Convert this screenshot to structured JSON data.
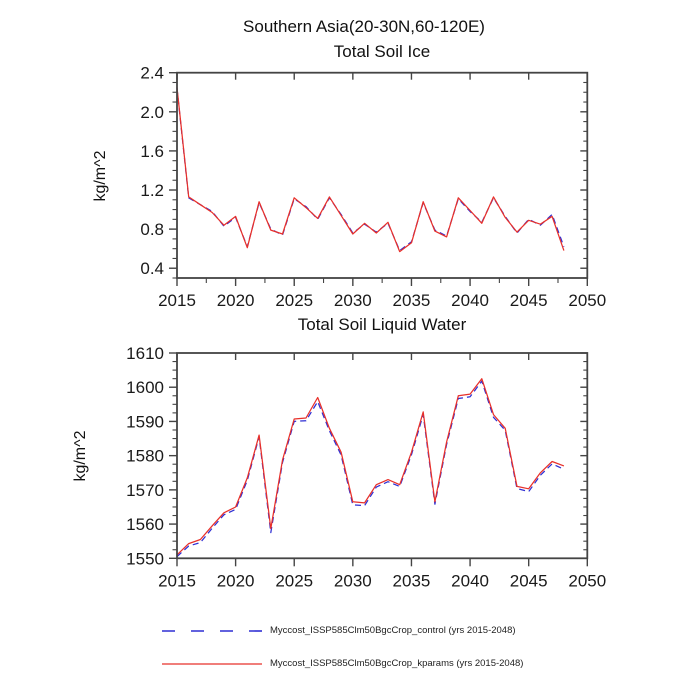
{
  "header": {
    "main_title": "Southern Asia(20-30N,60-120E)"
  },
  "colors": {
    "control": "#2f2fd3",
    "kparams": "#e8302a",
    "frame": "#444444",
    "text": "#1a1a1a"
  },
  "legend": {
    "items": [
      {
        "label": "Myccost_ISSP585Clm50BgcCrop_control (yrs 2015-2048)",
        "color": "#2f2fd3",
        "style": "dashed"
      },
      {
        "label": "Myccost_ISSP585Clm50BgcCrop_kparams (yrs 2015-2048)",
        "color": "#e8302a",
        "style": "solid"
      }
    ]
  },
  "chart_data": [
    {
      "type": "line",
      "title": "Total Soil Ice",
      "xlabel": "",
      "ylabel": "kg/m^2",
      "xlim": [
        2015,
        2050
      ],
      "ylim": [
        0.3,
        2.4
      ],
      "xticks": [
        2015,
        2020,
        2025,
        2030,
        2035,
        2040,
        2045,
        2050
      ],
      "xtick_labels": [
        "2015",
        "2020",
        "2025",
        "2030",
        "2035",
        "2040",
        "2045",
        "2050"
      ],
      "yticks": [
        0.4,
        0.8,
        1.2,
        1.6,
        2.0,
        2.4
      ],
      "ytick_labels": [
        "0.4",
        "0.8",
        "1.2",
        "1.6",
        "2.0",
        "2.4"
      ],
      "yminor_step": 0.1,
      "xminor_midpoints": true,
      "grid": false,
      "x": [
        2015,
        2016,
        2017,
        2018,
        2019,
        2020,
        2021,
        2022,
        2023,
        2024,
        2025,
        2026,
        2027,
        2028,
        2029,
        2030,
        2031,
        2032,
        2033,
        2034,
        2035,
        2036,
        2037,
        2038,
        2039,
        2040,
        2041,
        2042,
        2043,
        2044,
        2045,
        2046,
        2047,
        2048
      ],
      "series": [
        {
          "name": "Myccost_ISSP585Clm50BgcCrop_control",
          "style": "dashed",
          "color": "#2f2fd3",
          "values": [
            2.24,
            1.12,
            1.05,
            0.98,
            0.83,
            0.92,
            0.62,
            1.07,
            0.8,
            0.74,
            1.11,
            1.03,
            0.9,
            1.12,
            0.95,
            0.76,
            0.85,
            0.77,
            0.86,
            0.58,
            0.67,
            1.07,
            0.79,
            0.73,
            1.11,
            0.98,
            0.87,
            1.12,
            0.93,
            0.76,
            0.9,
            0.84,
            0.95,
            0.62
          ]
        },
        {
          "name": "Myccost_ISSP585Clm50BgcCrop_kparams",
          "style": "solid",
          "color": "#e8302a",
          "values": [
            2.25,
            1.13,
            1.05,
            0.97,
            0.84,
            0.93,
            0.61,
            1.08,
            0.79,
            0.75,
            1.12,
            1.02,
            0.91,
            1.13,
            0.94,
            0.75,
            0.86,
            0.76,
            0.87,
            0.57,
            0.66,
            1.08,
            0.78,
            0.72,
            1.12,
            0.99,
            0.86,
            1.13,
            0.92,
            0.77,
            0.89,
            0.85,
            0.93,
            0.58
          ]
        }
      ]
    },
    {
      "type": "line",
      "title": "Total Soil Liquid Water",
      "xlabel": "",
      "ylabel": "kg/m^2",
      "xlim": [
        2015,
        2050
      ],
      "ylim": [
        1550,
        1610
      ],
      "xticks": [
        2015,
        2020,
        2025,
        2030,
        2035,
        2040,
        2045,
        2050
      ],
      "xtick_labels": [
        "2015",
        "2020",
        "2025",
        "2030",
        "2035",
        "2040",
        "2045",
        "2050"
      ],
      "yticks": [
        1550,
        1560,
        1570,
        1580,
        1590,
        1600,
        1610
      ],
      "ytick_labels": [
        "1550",
        "1560",
        "1570",
        "1580",
        "1590",
        "1600",
        "1610"
      ],
      "yminor_step": 2.5,
      "xminor_midpoints": false,
      "grid": false,
      "x": [
        2015,
        2016,
        2017,
        2018,
        2019,
        2020,
        2021,
        2022,
        2023,
        2024,
        2025,
        2026,
        2027,
        2028,
        2029,
        2030,
        2031,
        2032,
        2033,
        2034,
        2035,
        2036,
        2037,
        2038,
        2039,
        2040,
        2041,
        2042,
        2043,
        2044,
        2045,
        2046,
        2047,
        2048
      ],
      "series": [
        {
          "name": "Myccost_ISSP585Clm50BgcCrop_control",
          "style": "dashed",
          "color": "#2f2fd3",
          "values": [
            1550.5,
            1553.6,
            1554.6,
            1558.8,
            1562.7,
            1564.3,
            1572.8,
            1585.5,
            1557.5,
            1578.0,
            1590.0,
            1590.2,
            1595.8,
            1587.3,
            1580.2,
            1565.6,
            1565.4,
            1570.8,
            1572.4,
            1571.0,
            1580.3,
            1592.0,
            1565.8,
            1583.3,
            1596.7,
            1597.2,
            1601.8,
            1591.2,
            1587.4,
            1570.4,
            1569.5,
            1574.3,
            1577.6,
            1576.0
          ]
        },
        {
          "name": "Myccost_ISSP585Clm50BgcCrop_kparams",
          "style": "solid",
          "color": "#e8302a",
          "values": [
            1551.0,
            1554.3,
            1555.5,
            1559.5,
            1563.3,
            1565.0,
            1573.5,
            1586.0,
            1558.7,
            1578.7,
            1590.7,
            1591.0,
            1597.0,
            1588.0,
            1581.0,
            1566.5,
            1566.2,
            1571.5,
            1573.0,
            1571.5,
            1581.0,
            1592.8,
            1566.5,
            1584.0,
            1597.5,
            1598.0,
            1602.5,
            1592.0,
            1588.0,
            1571.0,
            1570.3,
            1575.0,
            1578.3,
            1577.0
          ]
        }
      ]
    }
  ]
}
